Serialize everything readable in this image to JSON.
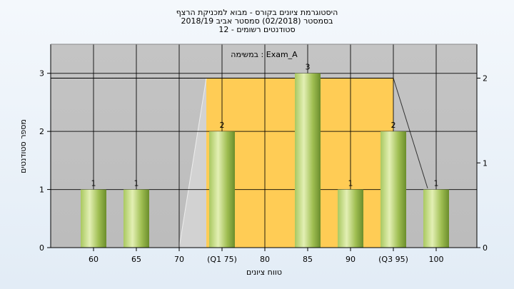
{
  "header": {
    "title_line1": "היסטוגרמת ציונים בקורס - מבוא למכניקת הרצף",
    "title_line2": "בסמסטר  (02/2018)  סמסטר אביב 2018/19",
    "title_line3": "סטודנטים רשומים - 12"
  },
  "chart_data": {
    "type": "bar",
    "categories": [
      "60",
      "65",
      "70",
      "(Q1 75)",
      "80",
      "85",
      "90",
      "(Q3 95)",
      "100"
    ],
    "series": [
      {
        "name": "Exam_A",
        "values": [
          1,
          1,
          0,
          2,
          0,
          3,
          1,
          2,
          1
        ]
      }
    ],
    "data_labels": [
      "1",
      "1",
      "",
      "2",
      "",
      "3",
      "1",
      "2",
      "1"
    ],
    "xlabel": "טווח ציונים",
    "ylabel": "מספר סטודנטים",
    "ylim": [
      0,
      3.5
    ],
    "y_ticks": [
      0,
      1,
      2,
      3
    ],
    "y2lim": [
      0,
      2.4
    ],
    "y2_ticks": [
      0,
      1,
      2
    ],
    "legend_label": "במשימה : Exam_A",
    "legend_position": "top-center",
    "grid": true,
    "overlay": {
      "type": "area",
      "description_points": [
        {
          "x": "70",
          "y2": 0
        },
        {
          "x": "(Q1 75)",
          "y2": 2
        },
        {
          "x": "(Q3 95)",
          "y2": 2
        },
        {
          "x": "100",
          "y2": 0.7
        }
      ]
    },
    "colors": {
      "plot_background": "#c0c0c0",
      "iqr_band": "#ffcc55",
      "bar_light": "#d7ea9c",
      "bar_dark": "#7ea23a",
      "grid": "#000000"
    }
  }
}
